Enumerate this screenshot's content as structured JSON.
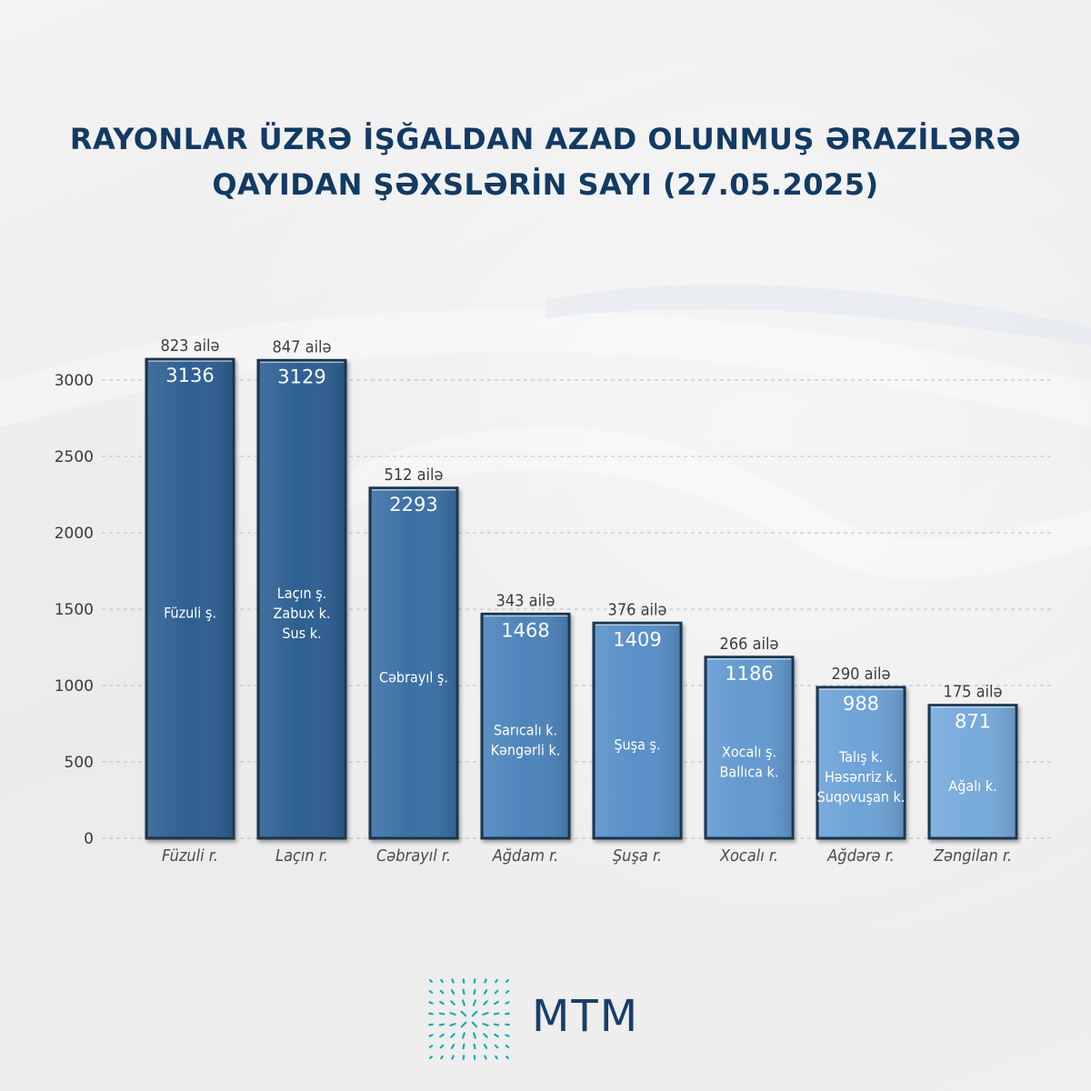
{
  "header": {
    "title_line1": "RAYONLAR ÜZRƏ İŞĞALDAN AZAD OLUNMUŞ ƏRAZİLƏRƏ",
    "title_line2": "QAYIDAN ŞƏXSLƏRİN SAYI (27.05.2025)"
  },
  "chart_data": {
    "type": "bar",
    "title": "RAYONLAR ÜZRƏ İŞĞALDAN AZAD OLUNMUŞ ƏRAZİLƏRƏ QAYIDAN ŞƏXSLƏRİN SAYI (27.05.2025)",
    "xlabel": "",
    "ylabel": "",
    "ylim": [
      0,
      3000
    ],
    "yticks": [
      "0",
      "500",
      "1000",
      "1500",
      "2000",
      "2500",
      "3000"
    ],
    "grid": true,
    "categories": [
      "Füzuli r.",
      "Laçın r.",
      "Cəbrayıl r.",
      "Ağdam r.",
      "Şuşa r.",
      "Xocalı r.",
      "Ağdərə r.",
      "Zəngilan r."
    ],
    "values": [
      3136,
      3129,
      2293,
      1468,
      1409,
      1186,
      988,
      871
    ],
    "value_labels": [
      "3136",
      "3129",
      "2293",
      "1468",
      "1409",
      "1186",
      "988",
      "871"
    ],
    "families": [
      "823 ailə",
      "847 ailə",
      "512 ailə",
      "343 ailə",
      "376 ailə",
      "266 ailə",
      "290 ailə",
      "175 ailə"
    ],
    "settlements": [
      [
        "Füzuli ş."
      ],
      [
        "Laçın ş.",
        "Zabux k.",
        "Sus k."
      ],
      [
        "Cəbrayıl ş."
      ],
      [
        "Sarıcalı k.",
        "Kəngərli k."
      ],
      [
        "Şuşa ş."
      ],
      [
        "Xocalı ş.",
        "Ballıca k."
      ],
      [
        "Talış k.",
        "Həsənriz k.",
        "Suqovuşan k."
      ],
      [
        "Ağalı k."
      ]
    ],
    "colors": [
      "#2d5f92",
      "#2d5f92",
      "#3b6fa5",
      "#4d84bc",
      "#5990c8",
      "#6399d0",
      "#6da2d7",
      "#77aadc"
    ]
  },
  "footer": {
    "brand": "MTM",
    "logo_icon": "mtm-logo-icon",
    "logo_color": "#1aa9b5"
  }
}
